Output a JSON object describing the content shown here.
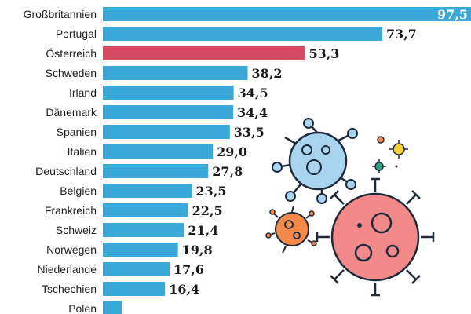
{
  "chart_data": {
    "type": "bar",
    "orientation": "horizontal",
    "categories": [
      "Großbritannien",
      "Portugal",
      "Österreich",
      "Schweden",
      "Irland",
      "Dänemark",
      "Spanien",
      "Italien",
      "Deutschland",
      "Belgien",
      "Frankreich",
      "Schweiz",
      "Norwegen",
      "Niederlande",
      "Tschechien",
      "Polen"
    ],
    "values": [
      97.5,
      73.7,
      53.3,
      38.2,
      34.5,
      34.4,
      33.5,
      29.0,
      27.8,
      23.5,
      22.5,
      21.4,
      19.8,
      17.6,
      16.4,
      5.1
    ],
    "value_labels": [
      "97,5",
      "73,7",
      "53,3",
      "38,2",
      "34,5",
      "34,4",
      "33,5",
      "29,0",
      "27,8",
      "23,5",
      "22,5",
      "21,4",
      "19,8",
      "17,6",
      "16,4",
      ""
    ],
    "highlight_category": "Österreich",
    "colors": {
      "default": "#3aa8d8",
      "highlight": "#d64a63"
    },
    "title": "",
    "xlabel": "",
    "ylabel": "",
    "xlim": [
      0,
      100
    ],
    "grid": false,
    "legend": "none"
  },
  "decoration": {
    "icon_names": [
      "virus-blue-icon",
      "virus-red-icon",
      "virus-orange-icon",
      "virus-small-yellow-icon",
      "virus-small-green-icon",
      "virus-small-orange-icon"
    ],
    "colors": {
      "blue": "#a8d4ef",
      "red": "#f28a8a",
      "orange": "#f4894a",
      "yellow": "#f5d23c",
      "green": "#2ea37a",
      "outline": "#1e2a3a"
    }
  }
}
